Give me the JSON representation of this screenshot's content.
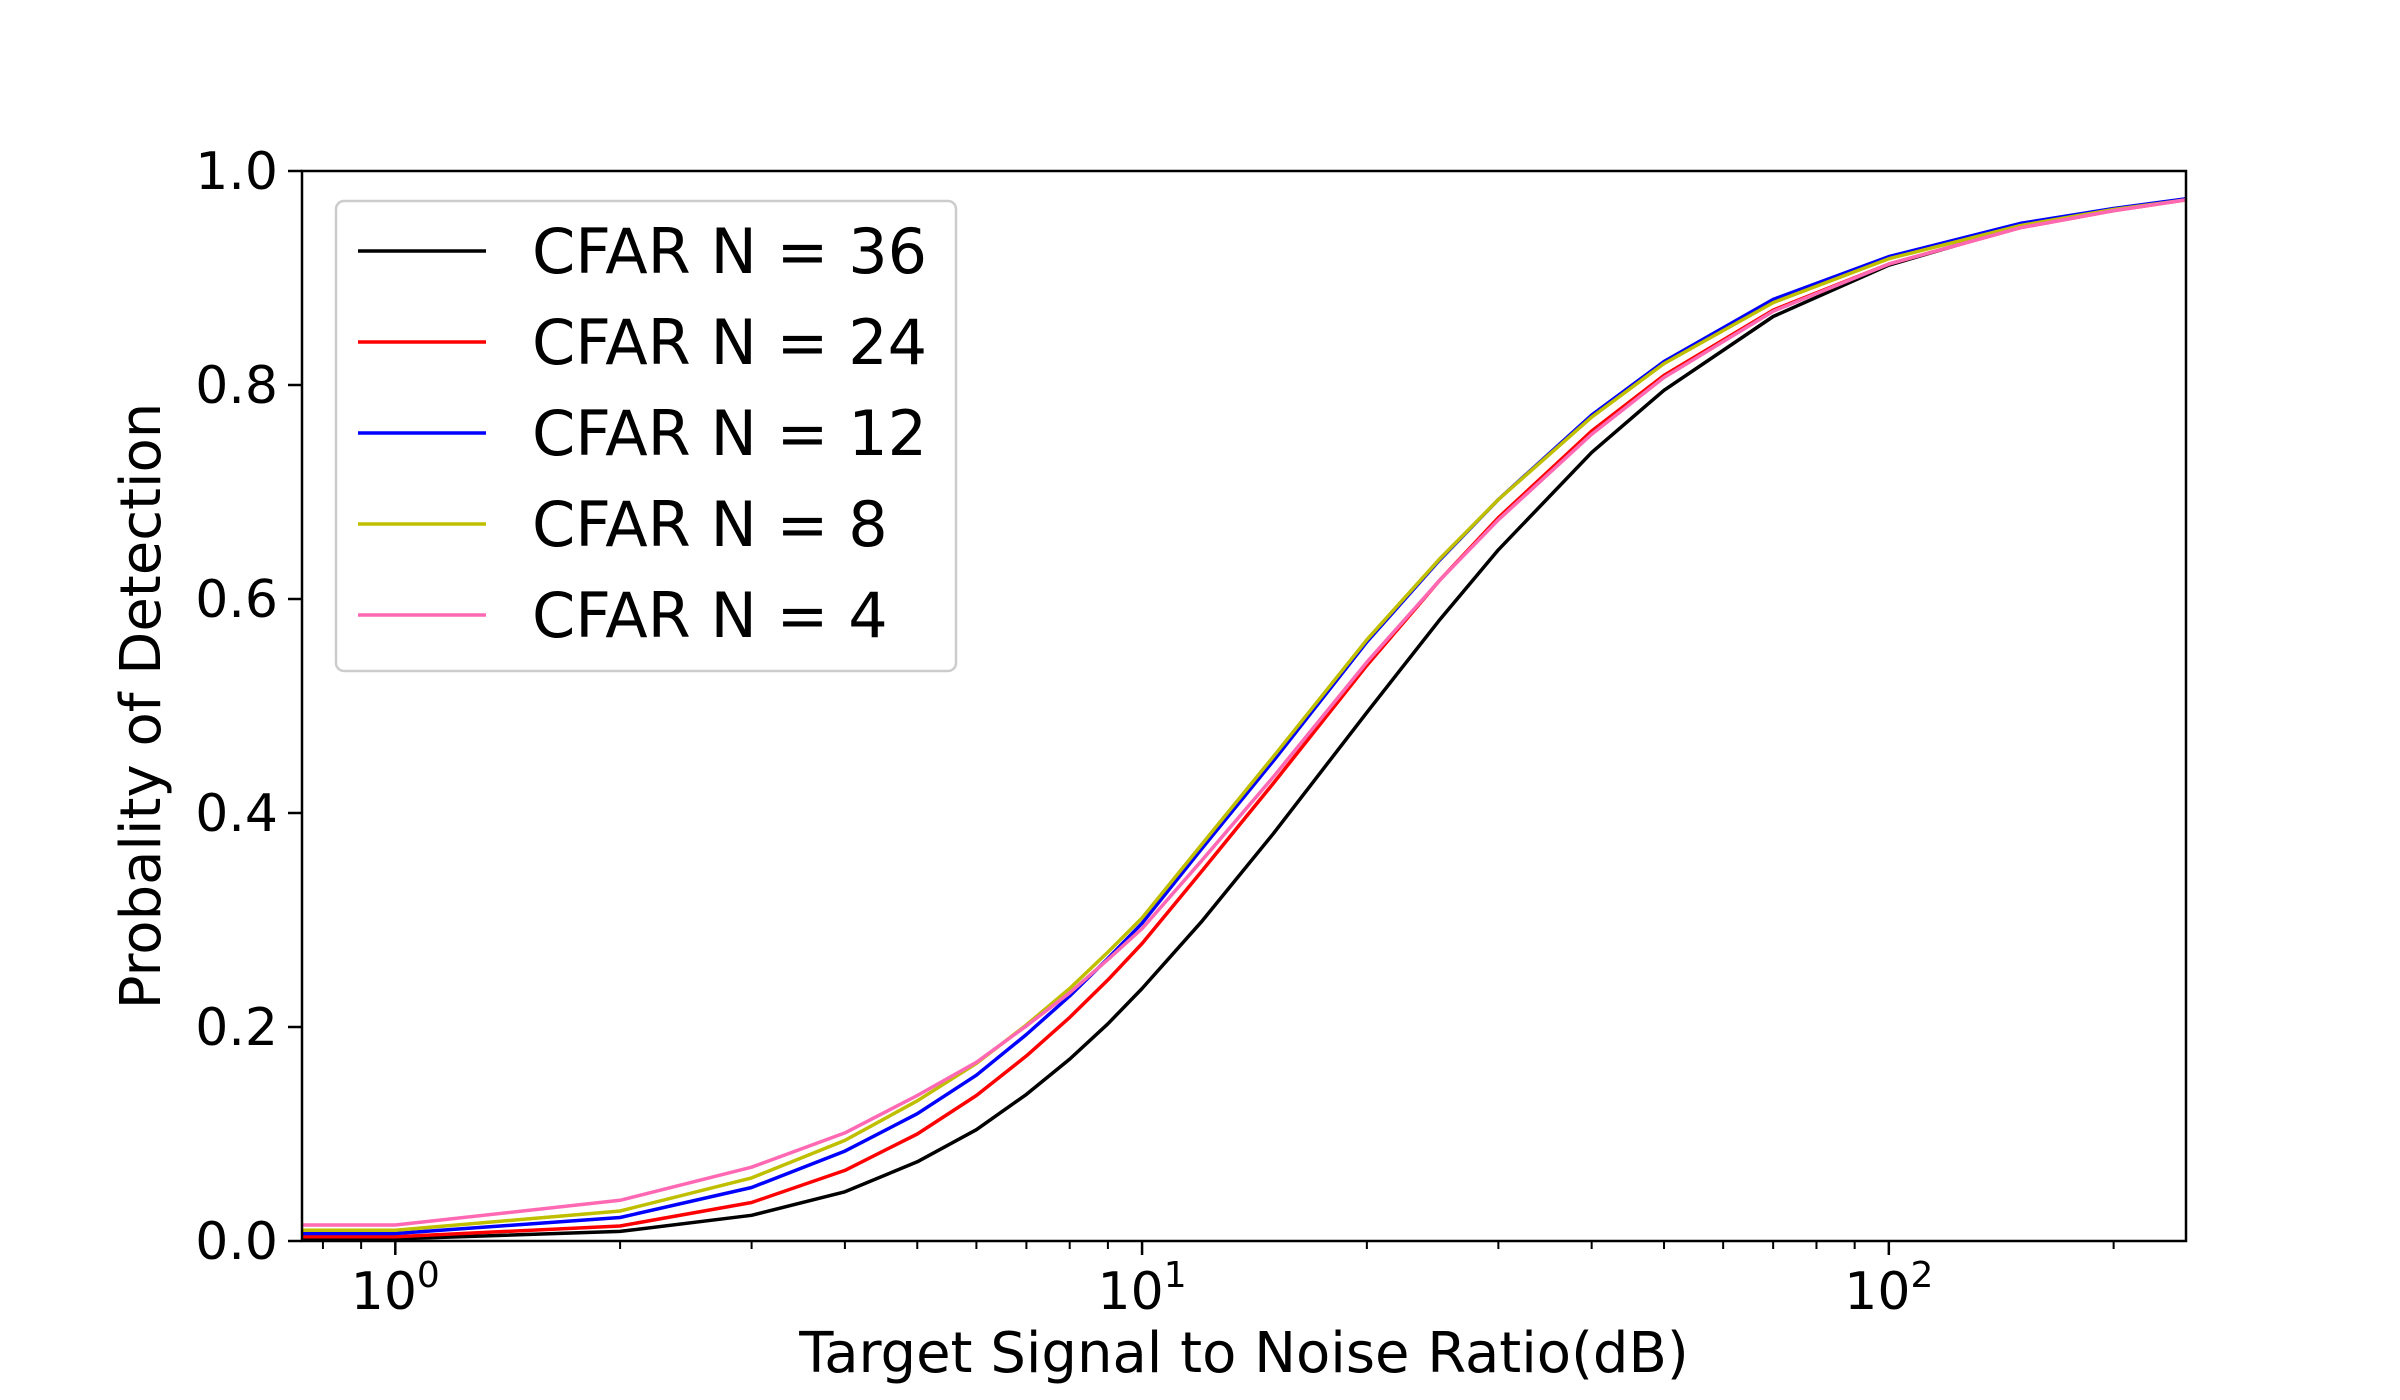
{
  "chart_data": {
    "type": "line",
    "title": "",
    "xlabel": "Target Signal to Noise Ratio(dB)",
    "ylabel": "Probality of Detection",
    "xscale": "log",
    "xlim": [
      0.75,
      250
    ],
    "ylim": [
      0,
      1.0
    ],
    "grid": false,
    "legend_position": "top-left",
    "xticks": [
      {
        "value": 1,
        "base": "10",
        "exp": "0"
      },
      {
        "value": 10,
        "base": "10",
        "exp": "1"
      },
      {
        "value": 100,
        "base": "10",
        "exp": "2"
      }
    ],
    "yticks": [
      "0.0",
      "0.2",
      "0.4",
      "0.6",
      "0.8",
      "1.0"
    ],
    "x": [
      0.75,
      1,
      2,
      3,
      4,
      5,
      6,
      7,
      8,
      9,
      10,
      12,
      15,
      20,
      25,
      30,
      40,
      50,
      70,
      100,
      150,
      200,
      250
    ],
    "series": [
      {
        "name": "CFAR N = 36",
        "color": "#000000",
        "values": [
          0.002,
          0.002,
          0.009,
          0.024,
          0.046,
          0.074,
          0.104,
          0.137,
          0.17,
          0.203,
          0.236,
          0.298,
          0.381,
          0.494,
          0.58,
          0.646,
          0.737,
          0.795,
          0.864,
          0.912,
          0.948,
          0.964,
          0.974
        ]
      },
      {
        "name": "CFAR N = 24",
        "color": "#ff0000",
        "values": [
          0.004,
          0.004,
          0.014,
          0.036,
          0.066,
          0.1,
          0.136,
          0.173,
          0.209,
          0.244,
          0.278,
          0.345,
          0.428,
          0.538,
          0.617,
          0.676,
          0.757,
          0.809,
          0.87,
          0.913,
          0.947,
          0.963,
          0.973
        ]
      },
      {
        "name": "CFAR N = 12",
        "color": "#0000ff",
        "values": [
          0.007,
          0.007,
          0.022,
          0.05,
          0.084,
          0.119,
          0.155,
          0.193,
          0.229,
          0.264,
          0.297,
          0.366,
          0.449,
          0.56,
          0.636,
          0.693,
          0.772,
          0.822,
          0.88,
          0.92,
          0.951,
          0.965,
          0.974
        ]
      },
      {
        "name": "CFAR N = 8",
        "color": "#bfbf00",
        "values": [
          0.01,
          0.01,
          0.028,
          0.059,
          0.094,
          0.131,
          0.166,
          0.202,
          0.236,
          0.27,
          0.302,
          0.37,
          0.453,
          0.562,
          0.637,
          0.693,
          0.77,
          0.82,
          0.877,
          0.918,
          0.949,
          0.964,
          0.973
        ]
      },
      {
        "name": "CFAR N = 4",
        "color": "#ff69b4",
        "values": [
          0.015,
          0.015,
          0.038,
          0.069,
          0.101,
          0.136,
          0.167,
          0.201,
          0.232,
          0.263,
          0.292,
          0.355,
          0.434,
          0.541,
          0.617,
          0.674,
          0.754,
          0.807,
          0.869,
          0.913,
          0.947,
          0.963,
          0.973
        ]
      }
    ]
  }
}
